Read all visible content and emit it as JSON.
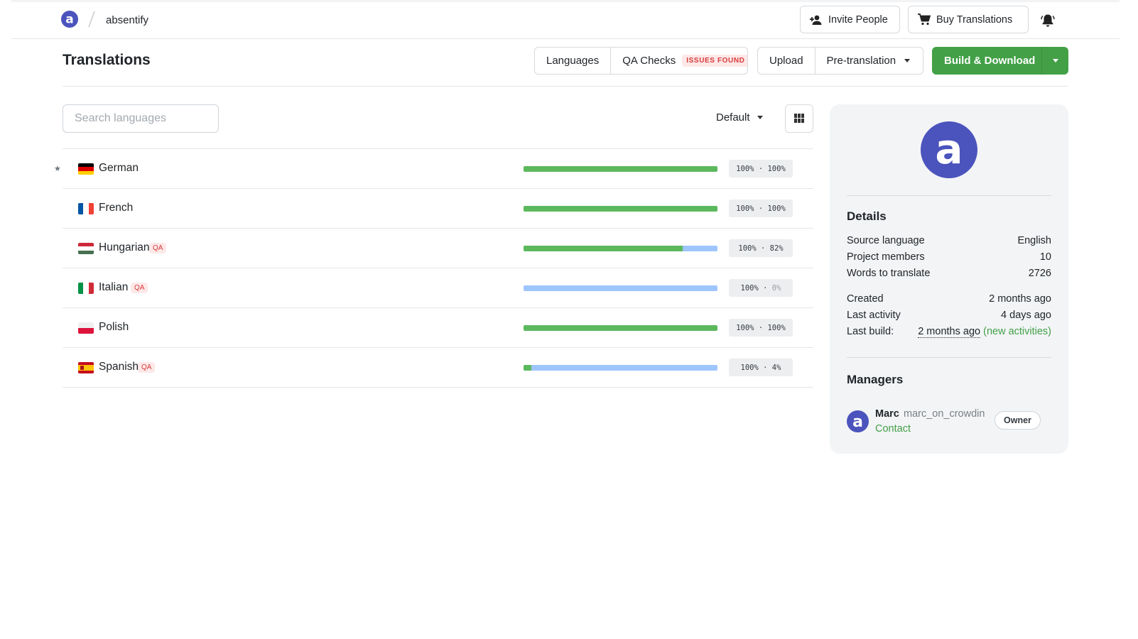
{
  "topbar": {
    "project_name": "absentify",
    "invite_label": "Invite People",
    "buy_label": "Buy Translations"
  },
  "header": {
    "title": "Translations",
    "languages_label": "Languages",
    "qa_checks_label": "QA Checks",
    "qa_issues_badge": "ISSUES FOUND",
    "upload_label": "Upload",
    "pretranslation_label": "Pre-translation",
    "build_label": "Build & Download"
  },
  "list_tools": {
    "search_placeholder": "Search languages",
    "sort_label": "Default"
  },
  "languages": [
    {
      "name": "German",
      "starred": true,
      "qa": "",
      "translated": "100%",
      "approved": "100%",
      "approved_fraction": 1.0,
      "flag": "de"
    },
    {
      "name": "French",
      "starred": false,
      "qa": "",
      "translated": "100%",
      "approved": "100%",
      "approved_fraction": 1.0,
      "flag": "fr"
    },
    {
      "name": "Hungarian",
      "starred": false,
      "qa": "QA",
      "translated": "100%",
      "approved": "82%",
      "approved_fraction": 0.82,
      "flag": "hu"
    },
    {
      "name": "Italian",
      "starred": false,
      "qa": "QA",
      "translated": "100%",
      "approved": "0%",
      "approved_fraction": 0.0,
      "flag": "it"
    },
    {
      "name": "Polish",
      "starred": false,
      "qa": "",
      "translated": "100%",
      "approved": "100%",
      "approved_fraction": 1.0,
      "flag": "pl"
    },
    {
      "name": "Spanish",
      "starred": false,
      "qa": "QA",
      "translated": "100%",
      "approved": "4%",
      "approved_fraction": 0.04,
      "flag": "es"
    }
  ],
  "details": {
    "heading": "Details",
    "source_language_label": "Source language",
    "source_language": "English",
    "members_label": "Project members",
    "members": "10",
    "words_label": "Words to translate",
    "words": "2726",
    "created_label": "Created",
    "created": "2 months ago",
    "activity_label": "Last activity",
    "activity": "4 days ago",
    "build_label": "Last build:",
    "build": "2 months ago",
    "build_note": "(new activities)"
  },
  "managers": {
    "heading": "Managers",
    "name": "Marc",
    "username": "marc_on_crowdin",
    "contact": "Contact",
    "role": "Owner"
  },
  "colors": {
    "brand": "#4b53bc",
    "green": "#43a047",
    "approved_bar": "#5cb85c",
    "translated_bar": "#9ec5fe",
    "qa_red": "#d83a3a"
  }
}
